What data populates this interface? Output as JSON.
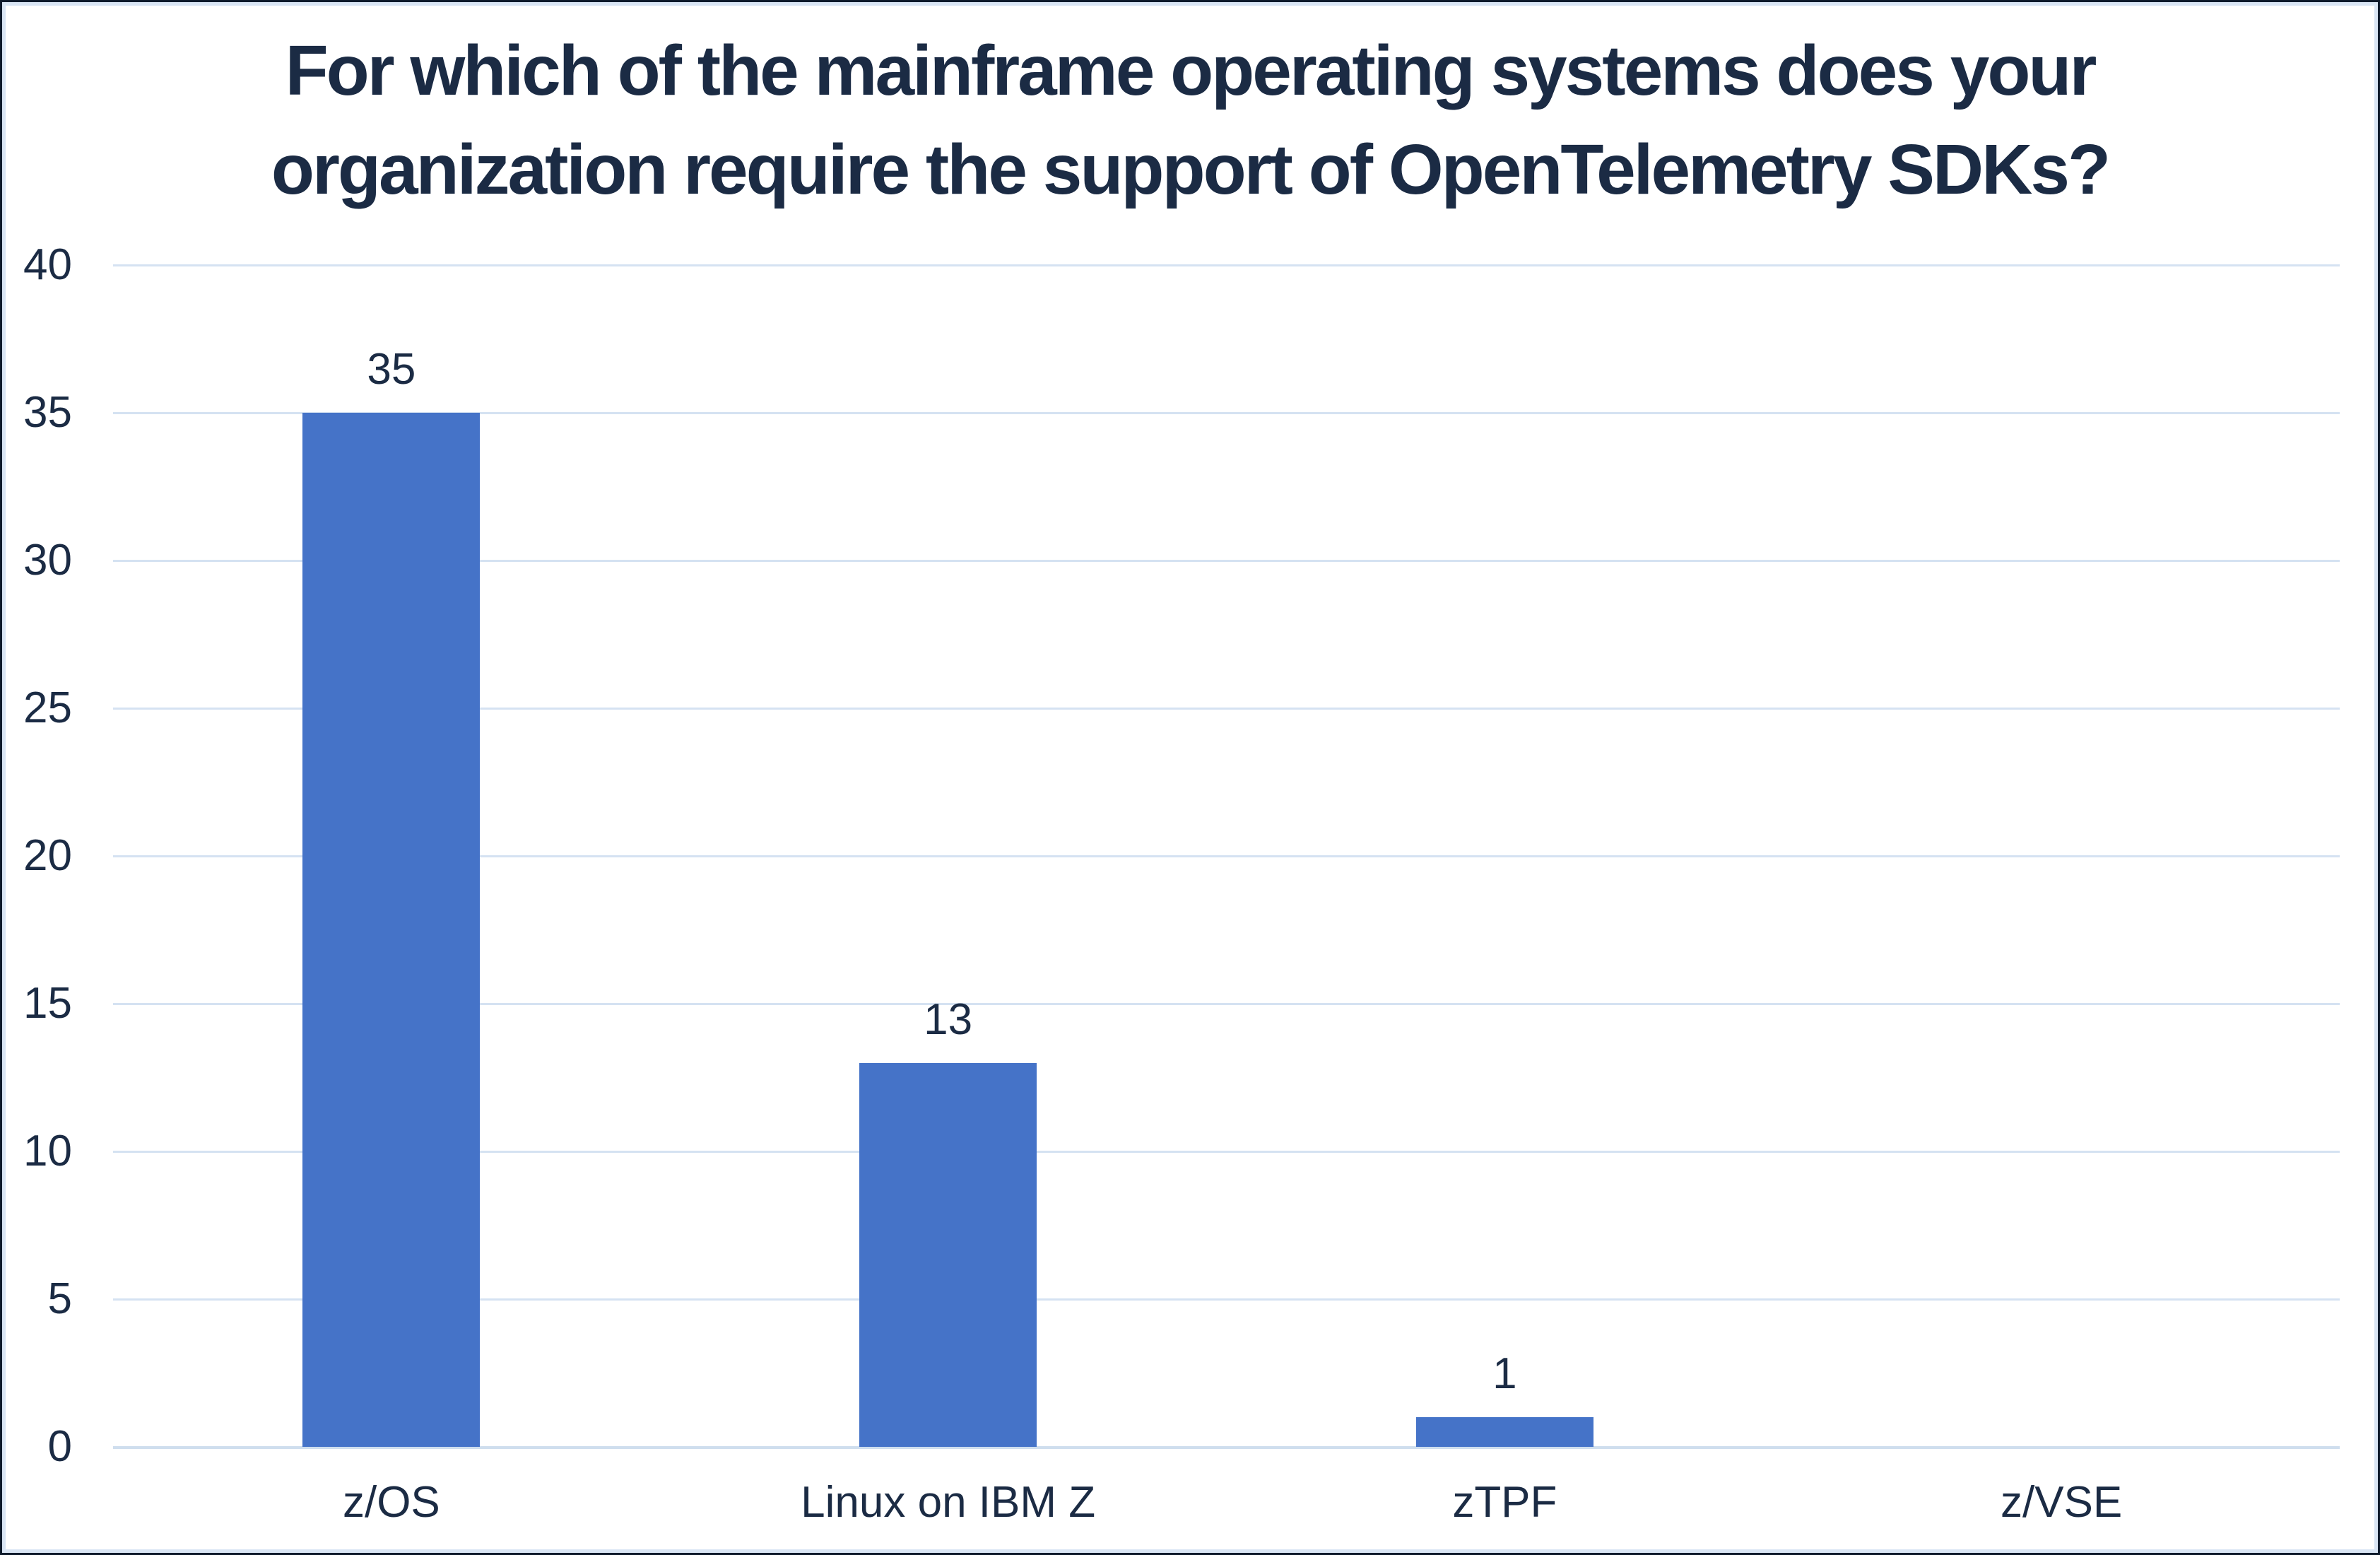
{
  "chart_data": {
    "type": "bar",
    "title": "For which of the mainframe operating systems does your organization require the support of OpenTelemetry SDKs?",
    "title_lines": [
      "For which of the mainframe operating systems does your",
      "organization require the support of OpenTelemetry SDKs?"
    ],
    "categories": [
      "z/OS",
      "Linux on IBM Z",
      "zTPF",
      "z/VSE"
    ],
    "values": [
      35,
      13,
      1,
      0
    ],
    "data_labels": [
      "35",
      "13",
      "1",
      ""
    ],
    "xlabel": "",
    "ylabel": "",
    "ylim": [
      0,
      40
    ],
    "yticks": [
      0,
      5,
      10,
      15,
      20,
      25,
      30,
      35,
      40
    ],
    "grid": "horizontal",
    "legend": "none",
    "colors": {
      "bar": "#4573c8",
      "text": "#1b2b44",
      "gridline": "#d5e2f2",
      "frame_inner": "#d9e5f4",
      "frame_outer": "#0e1a2b",
      "background": "#ffffff"
    }
  }
}
